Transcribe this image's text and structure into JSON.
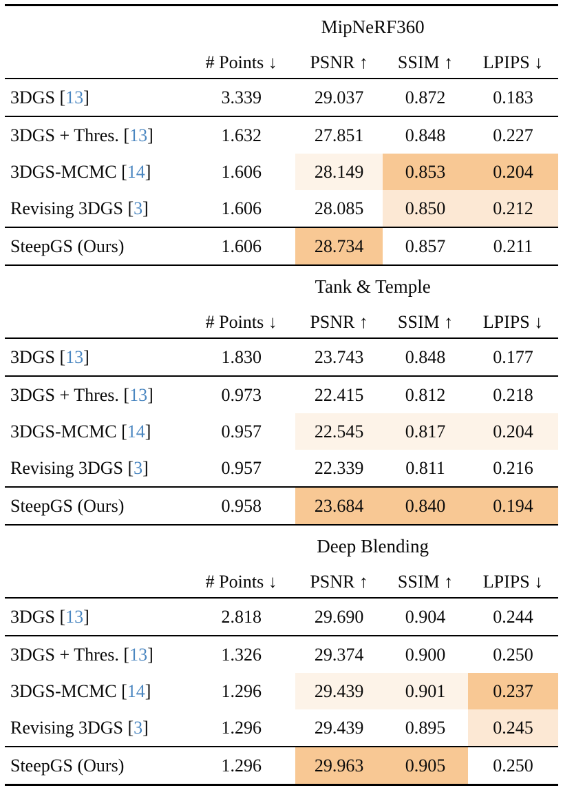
{
  "colors": {
    "highlight_best": "#f8c894",
    "highlight_second": "#fce8d4",
    "highlight_third": "#fdf3e8",
    "citation_link": "#4a86c0",
    "rule": "#000000",
    "text": "#0a0a0a"
  },
  "columns": [
    "# Points ↓",
    "PSNR ↑",
    "SSIM ↑",
    "LPIPS ↓"
  ],
  "sections": [
    {
      "title": "MipNeRF360",
      "rows": [
        {
          "label": "3DGS [",
          "cite": "13",
          "suffix": "]",
          "points": "3.339",
          "psnr": "29.037",
          "ssim": "0.872",
          "lpips": "0.183",
          "hl": {}
        },
        {
          "label": "3DGS + Thres. [",
          "cite": "13",
          "suffix": "]",
          "points": "1.632",
          "psnr": "27.851",
          "ssim": "0.848",
          "lpips": "0.227",
          "hl": {}
        },
        {
          "label": "3DGS-MCMC [",
          "cite": "14",
          "suffix": "]",
          "points": "1.606",
          "psnr": "28.149",
          "ssim": "0.853",
          "lpips": "0.204",
          "hl": {
            "psnr": "light",
            "ssim": "dark",
            "lpips": "dark"
          }
        },
        {
          "label": "Revising 3DGS [",
          "cite": "3",
          "suffix": "]",
          "points": "1.606",
          "psnr": "28.085",
          "ssim": "0.850",
          "lpips": "0.212",
          "hl": {
            "ssim": "medium",
            "lpips": "medium"
          }
        },
        {
          "label": "SteepGS (Ours)",
          "cite": "",
          "suffix": "",
          "points": "1.606",
          "psnr": "28.734",
          "ssim": "0.857",
          "lpips": "0.211",
          "hl": {
            "psnr": "dark"
          }
        }
      ]
    },
    {
      "title": "Tank & Temple",
      "rows": [
        {
          "label": "3DGS [",
          "cite": "13",
          "suffix": "]",
          "points": "1.830",
          "psnr": "23.743",
          "ssim": "0.848",
          "lpips": "0.177",
          "hl": {}
        },
        {
          "label": "3DGS + Thres. [",
          "cite": "13",
          "suffix": "]",
          "points": "0.973",
          "psnr": "22.415",
          "ssim": "0.812",
          "lpips": "0.218",
          "hl": {}
        },
        {
          "label": "3DGS-MCMC [",
          "cite": "14",
          "suffix": "]",
          "points": "0.957",
          "psnr": "22.545",
          "ssim": "0.817",
          "lpips": "0.204",
          "hl": {
            "psnr": "light",
            "ssim": "light",
            "lpips": "light"
          }
        },
        {
          "label": "Revising 3DGS [",
          "cite": "3",
          "suffix": "]",
          "points": "0.957",
          "psnr": "22.339",
          "ssim": "0.811",
          "lpips": "0.216",
          "hl": {}
        },
        {
          "label": "SteepGS (Ours)",
          "cite": "",
          "suffix": "",
          "points": "0.958",
          "psnr": "23.684",
          "ssim": "0.840",
          "lpips": "0.194",
          "hl": {
            "psnr": "dark",
            "ssim": "dark",
            "lpips": "dark"
          }
        }
      ]
    },
    {
      "title": "Deep Blending",
      "rows": [
        {
          "label": "3DGS [",
          "cite": "13",
          "suffix": "]",
          "points": "2.818",
          "psnr": "29.690",
          "ssim": "0.904",
          "lpips": "0.244",
          "hl": {}
        },
        {
          "label": "3DGS + Thres. [",
          "cite": "13",
          "suffix": "]",
          "points": "1.326",
          "psnr": "29.374",
          "ssim": "0.900",
          "lpips": "0.250",
          "hl": {}
        },
        {
          "label": "3DGS-MCMC [",
          "cite": "14",
          "suffix": "]",
          "points": "1.296",
          "psnr": "29.439",
          "ssim": "0.901",
          "lpips": "0.237",
          "hl": {
            "psnr": "light",
            "ssim": "light",
            "lpips": "dark"
          }
        },
        {
          "label": "Revising 3DGS [",
          "cite": "3",
          "suffix": "]",
          "points": "1.296",
          "psnr": "29.439",
          "ssim": "0.895",
          "lpips": "0.245",
          "hl": {
            "lpips": "medium"
          }
        },
        {
          "label": "SteepGS (Ours)",
          "cite": "",
          "suffix": "",
          "points": "1.296",
          "psnr": "29.963",
          "ssim": "0.905",
          "lpips": "0.250",
          "hl": {
            "psnr": "dark",
            "ssim": "dark"
          }
        }
      ]
    }
  ]
}
